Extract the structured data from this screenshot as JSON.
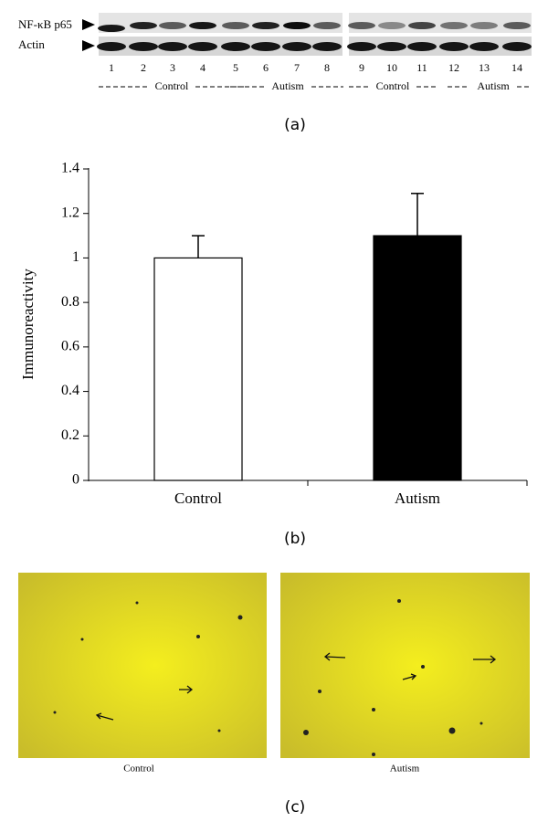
{
  "blot": {
    "rows": [
      "NF-κB p65",
      "Actin"
    ],
    "lanes": [
      "1",
      "2",
      "3",
      "4",
      "5",
      "6",
      "7",
      "8",
      "9",
      "10",
      "11",
      "12",
      "13",
      "14"
    ],
    "groups": [
      "Control",
      "Autism",
      "Control",
      "Autism"
    ],
    "panel": "(a)"
  },
  "chart_data": {
    "type": "bar",
    "y_label": "Immunoreactivity",
    "categories": [
      "Control",
      "Autism"
    ],
    "values": [
      1.0,
      1.1
    ],
    "errors": [
      0.1,
      0.19
    ],
    "colors": [
      "#ffffff",
      "#000000"
    ],
    "ylim": [
      0,
      1.4
    ],
    "yticks": [
      0,
      0.2,
      0.4,
      0.6,
      0.8,
      1,
      1.2,
      1.4
    ],
    "panel": "(b)"
  },
  "micrographs": {
    "captions": [
      "Control",
      "Autism"
    ],
    "panel": "(c)"
  }
}
